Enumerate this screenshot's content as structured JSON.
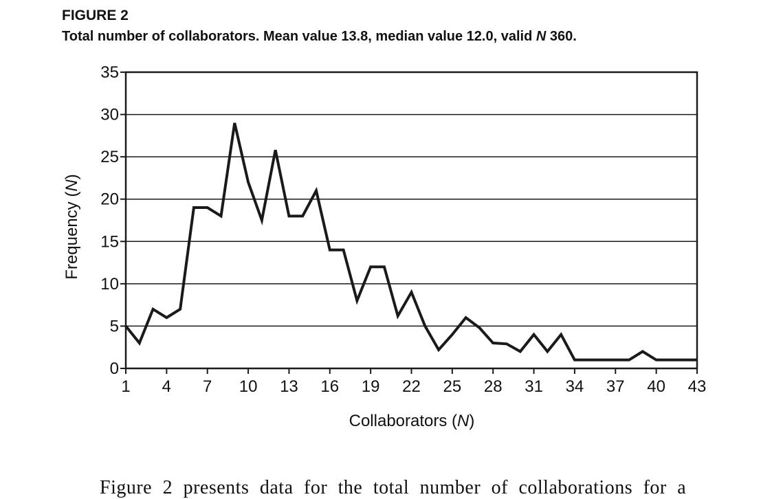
{
  "figure": {
    "label": "FIGURE 2",
    "caption_before": "Total number of collaborators. Mean value 13.8, median value 12.0, valid ",
    "caption_italic": "N",
    "caption_after": " 360."
  },
  "body_text": "Figure 2 presents data for the total number of collaborations for a",
  "chart_data": {
    "type": "line",
    "title": "",
    "xlabel": "Collaborators (N)",
    "ylabel": "Frequency (N)",
    "xlim": [
      1,
      43
    ],
    "ylim": [
      0,
      35
    ],
    "x_ticks": [
      1,
      4,
      7,
      10,
      13,
      16,
      19,
      22,
      25,
      28,
      31,
      34,
      37,
      40,
      43
    ],
    "y_ticks": [
      0,
      5,
      10,
      15,
      20,
      25,
      30,
      35
    ],
    "grid": true,
    "line_color": "#1a1a1a",
    "series": [
      {
        "x": [
          1,
          2,
          3,
          4,
          5,
          6,
          7,
          8,
          9,
          10,
          11,
          12,
          13,
          14,
          15,
          16,
          17,
          18,
          19,
          20,
          21,
          22,
          23,
          24,
          25,
          26,
          27,
          28,
          29,
          30,
          31,
          32,
          33,
          34,
          38,
          39,
          40,
          43
        ],
        "y": [
          5,
          3,
          7,
          6,
          7,
          19,
          19,
          18,
          29,
          22,
          17.5,
          25.8,
          18,
          18,
          21,
          14,
          14,
          8,
          12,
          12,
          6.2,
          9,
          5,
          2.2,
          4,
          6,
          4.8,
          3,
          2.9,
          2,
          4,
          2,
          4,
          1,
          1,
          2,
          1,
          1
        ]
      }
    ]
  }
}
